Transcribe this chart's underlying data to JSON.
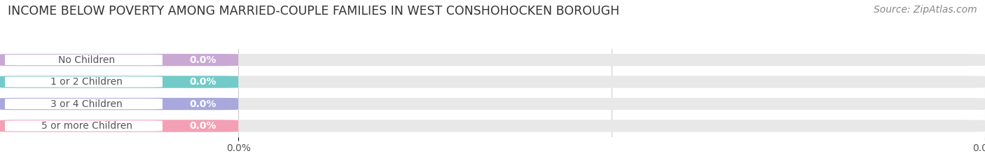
{
  "title": "INCOME BELOW POVERTY AMONG MARRIED-COUPLE FAMILIES IN WEST CONSHOHOCKEN BOROUGH",
  "source": "Source: ZipAtlas.com",
  "categories": [
    "No Children",
    "1 or 2 Children",
    "3 or 4 Children",
    "5 or more Children"
  ],
  "values": [
    0.0,
    0.0,
    0.0,
    0.0
  ],
  "bar_colors": [
    "#c9a8d4",
    "#72cbc8",
    "#a8a8dc",
    "#f4a0b4"
  ],
  "bar_bg_color": "#e8e8e8",
  "label_bg_color": "#f5f5f5",
  "label_text_color": "#555555",
  "value_label_color": "#ffffff",
  "title_fontsize": 12.5,
  "tick_fontsize": 10,
  "label_fontsize": 10,
  "source_fontsize": 10,
  "background_color": "#ffffff",
  "tick_label": "0.0%",
  "grid_color": "#cccccc"
}
